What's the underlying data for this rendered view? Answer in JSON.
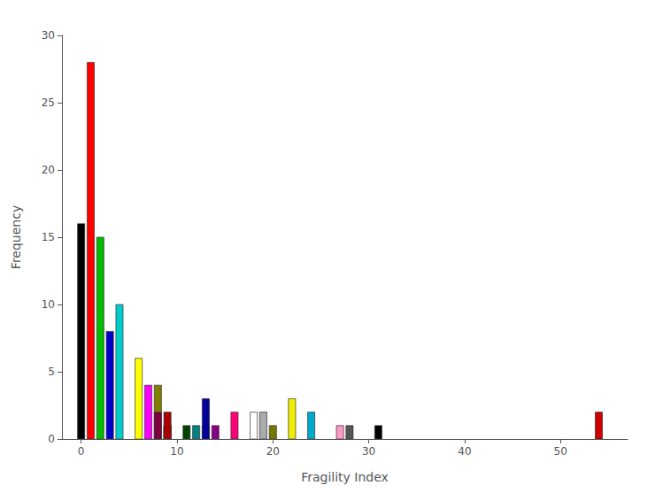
{
  "chart_data": {
    "type": "bar",
    "xlabel": "Fragility Index",
    "ylabel": "Frequency",
    "x": [
      0,
      1,
      2,
      3,
      4,
      6,
      7,
      8,
      9,
      9,
      8,
      9,
      11,
      12,
      13,
      14,
      13,
      16,
      18,
      19,
      20,
      22,
      24,
      27,
      28,
      31,
      54
    ],
    "values": [
      16,
      28,
      15,
      8,
      10,
      6,
      4,
      4,
      1,
      1,
      2,
      2,
      1,
      1,
      1,
      1,
      3,
      2,
      2,
      2,
      1,
      3,
      2,
      1,
      1,
      1,
      2
    ],
    "colors": [
      "#000000",
      "#ff0000",
      "#00bb00",
      "#0000cc",
      "#00cccc",
      "#ffff00",
      "#ff00ff",
      "#808000",
      "#000080",
      "#000080",
      "#800040",
      "#aa0000",
      "#004400",
      "#008080",
      "#ff8800",
      "#880088",
      "#000099",
      "#ff0077",
      "#ffffff",
      "#aaaaaa",
      "#777700",
      "#eeee00",
      "#00aacc",
      "#ff99cc",
      "#555555",
      "#000000",
      "#cc0000"
    ],
    "xlim": [
      -2,
      57
    ],
    "xticks": [
      0,
      10,
      20,
      30,
      40,
      50
    ],
    "ylim": [
      0,
      30
    ],
    "yticks": [
      0,
      5,
      10,
      15,
      20,
      25,
      30
    ],
    "grid": false
  }
}
